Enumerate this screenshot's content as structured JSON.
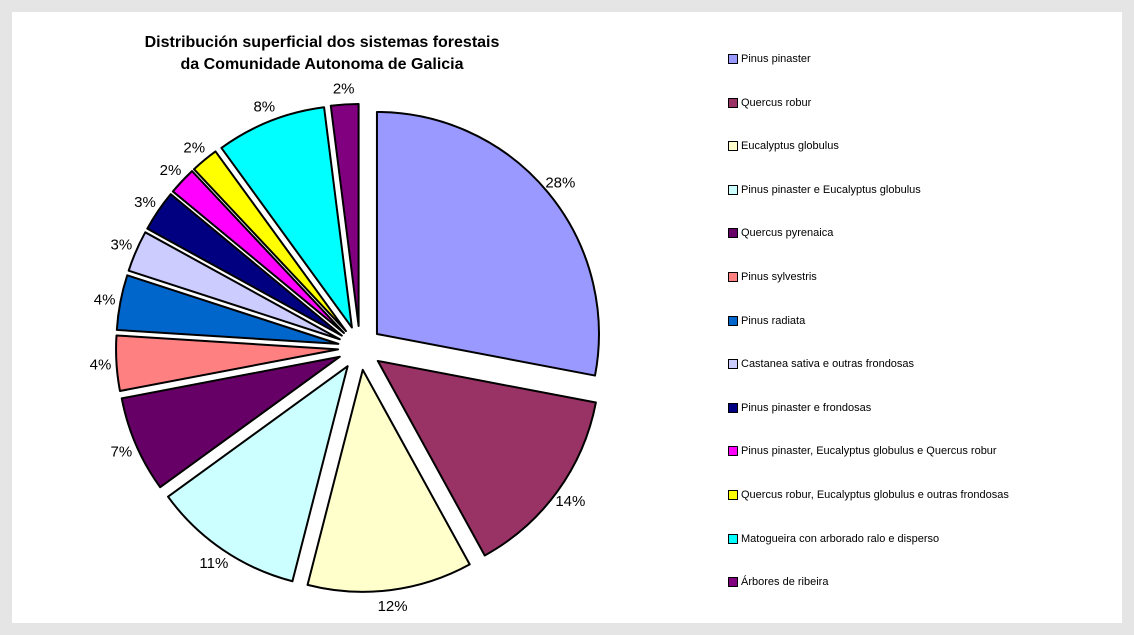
{
  "chart_data": {
    "type": "pie",
    "title": "Distribución superficial dos sistemas forestais da Comunidade Autonoma de Galicia",
    "title_lines": [
      "Distribución superficial dos sistemas forestais",
      "da Comunidade Autonoma de Galicia"
    ],
    "legend_position": "right",
    "exploded": true,
    "slices": [
      {
        "label": "Pinus pinaster",
        "value": 28,
        "display": "28%",
        "color": "#9999ff"
      },
      {
        "label": "Quercus robur",
        "value": 14,
        "display": "14%",
        "color": "#993366"
      },
      {
        "label": "Eucalyptus globulus",
        "value": 12,
        "display": "12%",
        "color": "#ffffcc"
      },
      {
        "label": "Pinus pinaster e Eucalyptus globulus",
        "value": 11,
        "display": "11%",
        "color": "#ccffff"
      },
      {
        "label": "Quercus pyrenaica",
        "value": 7,
        "display": "7%",
        "color": "#660066"
      },
      {
        "label": "Pinus sylvestris",
        "value": 4,
        "display": "4%",
        "color": "#ff8080"
      },
      {
        "label": "Pinus radiata",
        "value": 4,
        "display": "4%",
        "color": "#0066cc"
      },
      {
        "label": "Castanea sativa e outras frondosas",
        "value": 3,
        "display": "3%",
        "color": "#ccccff"
      },
      {
        "label": "Pinus pinaster e frondosas",
        "value": 3,
        "display": "3%",
        "color": "#000080"
      },
      {
        "label": "Pinus pinaster, Eucalyptus globulus e Quercus robur",
        "value": 2,
        "display": "2%",
        "color": "#ff00ff"
      },
      {
        "label": "Quercus robur, Eucalyptus globulus e outras frondosas",
        "value": 2,
        "display": "2%",
        "color": "#ffff00"
      },
      {
        "label": "Matogueira con arborado ralo e disperso",
        "value": 8,
        "display": "8%",
        "color": "#00ffff"
      },
      {
        "label": "Árbores de ribeira",
        "value": 2,
        "display": "2%",
        "color": "#800080"
      }
    ]
  }
}
